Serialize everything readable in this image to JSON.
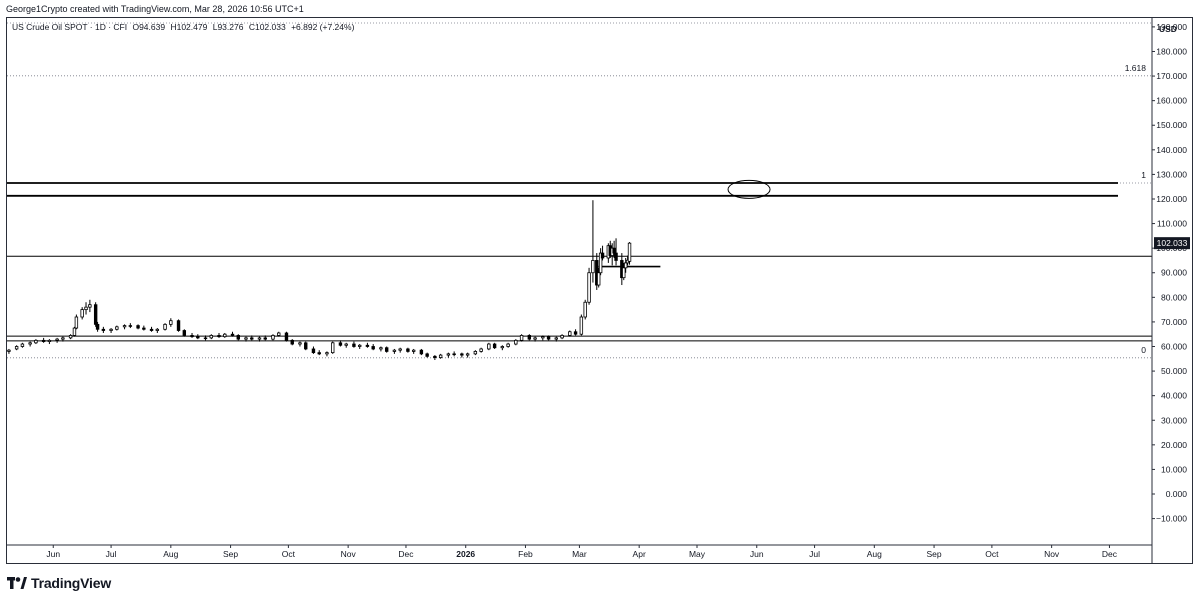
{
  "header": {
    "credit": "George1Crypto created with TradingView.com, Mar 28, 2026 10:56 UTC+1"
  },
  "legend": {
    "symbol": "US Crude Oil SPOT · 1D · CFI",
    "open": "O94.639",
    "high": "H102.479",
    "low": "L93.276",
    "close": "C102.033",
    "change": "+6.892 (+7.24%)"
  },
  "price_axis": {
    "unit": "USD",
    "current_price_label": "102.033"
  },
  "fib_labels": {
    "level_1618": "1.618",
    "level_1": "1",
    "level_0": "0"
  },
  "branding": {
    "logo_text": "TradingView"
  },
  "colors": {
    "line": "#000000",
    "current_price_bg": "#131722",
    "grid": "#e0e3eb"
  },
  "chart_data": {
    "type": "candlestick",
    "title": "US Crude Oil SPOT · 1D · CFI",
    "ylabel": "USD",
    "ylim": [
      -15,
      195
    ],
    "grid": false,
    "y_ticks": [
      190,
      180,
      170,
      160,
      150,
      140,
      130,
      120,
      110,
      100,
      90,
      80,
      70,
      60,
      50,
      40,
      30,
      20,
      10,
      0,
      -10
    ],
    "y_tick_labels": [
      "190.000",
      "180.000",
      "170.000",
      "160.000",
      "150.000",
      "140.000",
      "130.000",
      "120.000",
      "110.000",
      "100.000",
      "90.000",
      "80.000",
      "70.000",
      "60.000",
      "50.000",
      "40.000",
      "30.000",
      "20.000",
      "10.000",
      "0.000",
      "−10.000"
    ],
    "x_tick_labels": [
      "Jun",
      "Jul",
      "Aug",
      "Sep",
      "Oct",
      "Nov",
      "Dec",
      "2026",
      "Feb",
      "Mar",
      "Apr",
      "May",
      "Jun",
      "Jul",
      "Aug",
      "Sep",
      "Oct",
      "Nov",
      "Dec"
    ],
    "x_tick_dates": [
      "2025-06-01",
      "2025-07-01",
      "2025-08-01",
      "2025-09-01",
      "2025-10-01",
      "2025-11-01",
      "2025-12-01",
      "2026-01-01",
      "2026-02-01",
      "2026-03-01",
      "2026-04-01",
      "2026-05-01",
      "2026-06-01",
      "2026-07-01",
      "2026-08-01",
      "2026-09-01",
      "2026-10-01",
      "2026-11-01",
      "2026-12-01"
    ],
    "x_range": [
      "2025-05-08",
      "2026-12-21"
    ],
    "current_price": 102.033,
    "series": [
      {
        "points": [
          [
            "2025-05-09",
            58,
            59,
            57,
            58.5
          ],
          [
            "2025-05-13",
            59,
            60.5,
            58.5,
            60
          ],
          [
            "2025-05-16",
            60,
            61.5,
            59.5,
            61
          ],
          [
            "2025-05-20",
            61,
            62,
            60,
            61.5
          ],
          [
            "2025-05-23",
            61.5,
            63,
            61,
            62.5
          ],
          [
            "2025-05-27",
            62.5,
            63.5,
            61.5,
            62
          ],
          [
            "2025-05-30",
            62,
            63,
            61,
            62.5
          ],
          [
            "2025-06-03",
            62.5,
            63.5,
            61.5,
            63
          ],
          [
            "2025-06-06",
            63,
            64,
            62,
            63.5
          ],
          [
            "2025-06-10",
            63.5,
            65,
            63,
            64.5
          ],
          [
            "2025-06-12",
            64.5,
            68,
            64,
            67.5
          ],
          [
            "2025-06-13",
            67.5,
            73,
            67,
            72
          ],
          [
            "2025-06-16",
            72,
            76,
            71,
            75
          ],
          [
            "2025-06-18",
            75,
            78,
            73,
            76
          ],
          [
            "2025-06-20",
            76,
            79,
            74,
            77
          ],
          [
            "2025-06-23",
            77,
            78,
            68,
            69
          ],
          [
            "2025-06-24",
            69,
            70,
            66,
            67
          ],
          [
            "2025-06-27",
            67,
            68,
            65.5,
            66.5
          ],
          [
            "2025-07-01",
            66.5,
            67.5,
            65.5,
            67
          ],
          [
            "2025-07-04",
            67,
            68.5,
            66.5,
            68
          ],
          [
            "2025-07-08",
            68,
            69,
            67,
            68.5
          ],
          [
            "2025-07-11",
            68.5,
            69.5,
            67.5,
            68.5
          ],
          [
            "2025-07-15",
            68.5,
            69,
            67,
            67.5
          ],
          [
            "2025-07-18",
            67.5,
            68.5,
            66.5,
            67
          ],
          [
            "2025-07-22",
            67,
            68,
            66,
            66.5
          ],
          [
            "2025-07-25",
            66.5,
            67.5,
            65.5,
            67
          ],
          [
            "2025-07-29",
            67,
            69.5,
            66.5,
            69
          ],
          [
            "2025-08-01",
            69,
            71.5,
            68,
            70.5
          ],
          [
            "2025-08-05",
            70.5,
            71,
            66,
            66.5
          ],
          [
            "2025-08-08",
            66.5,
            67,
            64,
            64.5
          ],
          [
            "2025-08-12",
            64.5,
            65.5,
            63.5,
            64
          ],
          [
            "2025-08-15",
            64,
            65,
            63,
            63.5
          ],
          [
            "2025-08-19",
            63.5,
            64.5,
            62.5,
            63.5
          ],
          [
            "2025-08-22",
            63.5,
            65,
            63,
            64.5
          ],
          [
            "2025-08-26",
            64.5,
            65.5,
            63.5,
            64
          ],
          [
            "2025-08-29",
            64,
            65.5,
            63.5,
            65
          ],
          [
            "2025-09-02",
            65,
            66,
            64,
            64.5
          ],
          [
            "2025-09-05",
            64.5,
            65,
            62.5,
            63
          ],
          [
            "2025-09-09",
            63,
            64,
            62,
            63.5
          ],
          [
            "2025-09-12",
            63.5,
            64.5,
            62.5,
            63
          ],
          [
            "2025-09-16",
            63,
            64,
            62,
            63.5
          ],
          [
            "2025-09-19",
            63.5,
            64.5,
            62.5,
            63
          ],
          [
            "2025-09-23",
            63,
            65,
            62.5,
            64.5
          ],
          [
            "2025-09-26",
            64.5,
            66,
            64,
            65.5
          ],
          [
            "2025-09-30",
            65.5,
            66,
            62,
            62.5
          ],
          [
            "2025-10-03",
            62.5,
            63,
            60.5,
            61
          ],
          [
            "2025-10-07",
            61,
            62,
            60,
            61.5
          ],
          [
            "2025-10-10",
            61.5,
            62,
            58.5,
            59
          ],
          [
            "2025-10-14",
            59,
            60,
            57,
            57.5
          ],
          [
            "2025-10-17",
            57.5,
            58.5,
            56.5,
            57
          ],
          [
            "2025-10-21",
            57,
            58,
            56,
            57.5
          ],
          [
            "2025-10-24",
            57.5,
            62,
            57,
            61.5
          ],
          [
            "2025-10-28",
            61.5,
            62.5,
            60,
            60.5
          ],
          [
            "2025-10-31",
            60.5,
            61.5,
            59.5,
            61
          ],
          [
            "2025-11-04",
            61,
            62,
            59.5,
            60
          ],
          [
            "2025-11-07",
            60,
            61,
            59,
            60.5
          ],
          [
            "2025-11-11",
            60.5,
            61.5,
            59.5,
            60
          ],
          [
            "2025-11-14",
            60,
            61,
            58.5,
            59
          ],
          [
            "2025-11-18",
            59,
            60,
            58,
            59.5
          ],
          [
            "2025-11-21",
            59.5,
            60,
            57.5,
            58
          ],
          [
            "2025-11-25",
            58,
            59,
            57,
            58.5
          ],
          [
            "2025-11-28",
            58.5,
            59.5,
            57.5,
            59
          ],
          [
            "2025-12-02",
            59,
            59.5,
            57.5,
            58
          ],
          [
            "2025-12-05",
            58,
            59,
            57,
            58.5
          ],
          [
            "2025-12-09",
            58.5,
            59,
            56.5,
            57
          ],
          [
            "2025-12-12",
            57,
            57.5,
            55.5,
            56
          ],
          [
            "2025-12-16",
            56,
            56.5,
            54.5,
            55.5
          ],
          [
            "2025-12-19",
            55.5,
            57,
            55,
            56.5
          ],
          [
            "2025-12-23",
            56.5,
            57.5,
            55.5,
            57
          ],
          [
            "2025-12-26",
            57,
            58,
            56,
            57
          ],
          [
            "2025-12-30",
            57,
            57.5,
            55.5,
            56.5
          ],
          [
            "2026-01-02",
            56.5,
            57.5,
            55.5,
            57
          ],
          [
            "2026-01-06",
            57,
            58.5,
            56.5,
            58
          ],
          [
            "2026-01-09",
            58,
            59.5,
            57.5,
            59
          ],
          [
            "2026-01-13",
            59,
            61.5,
            58.5,
            61
          ],
          [
            "2026-01-16",
            61,
            61.5,
            59,
            59.5
          ],
          [
            "2026-01-20",
            59.5,
            60.5,
            58.5,
            60
          ],
          [
            "2026-01-23",
            60,
            61.5,
            59.5,
            61
          ],
          [
            "2026-01-27",
            61,
            63,
            60.5,
            62.5
          ],
          [
            "2026-01-30",
            62.5,
            65,
            62,
            64.5
          ],
          [
            "2026-02-03",
            64.5,
            65,
            62.5,
            63
          ],
          [
            "2026-02-06",
            63,
            64,
            62,
            63.5
          ],
          [
            "2026-02-10",
            63.5,
            64.5,
            62.5,
            64
          ],
          [
            "2026-02-13",
            64,
            64.5,
            62.5,
            63
          ],
          [
            "2026-02-17",
            63,
            64,
            62,
            63.5
          ],
          [
            "2026-02-20",
            63.5,
            65,
            63,
            64.5
          ],
          [
            "2026-02-24",
            64.5,
            66.5,
            64,
            66
          ],
          [
            "2026-02-27",
            66,
            67,
            64.5,
            65
          ],
          [
            "2026-03-02",
            65,
            73,
            64.5,
            72
          ],
          [
            "2026-03-04",
            72,
            79,
            71,
            78
          ],
          [
            "2026-03-06",
            78,
            92,
            77,
            90
          ],
          [
            "2026-03-08",
            90,
            119.5,
            86,
            95
          ],
          [
            "2026-03-10",
            95,
            98,
            83,
            85
          ],
          [
            "2026-03-11",
            85,
            92,
            84,
            90
          ],
          [
            "2026-03-12",
            90,
            100,
            89,
            98
          ],
          [
            "2026-03-13",
            98,
            101,
            95,
            96
          ],
          [
            "2026-03-16",
            96,
            102,
            94,
            101
          ],
          [
            "2026-03-17",
            101,
            103,
            96,
            97
          ],
          [
            "2026-03-18",
            97,
            102,
            93,
            100
          ],
          [
            "2026-03-19",
            100,
            103,
            96,
            98
          ],
          [
            "2026-03-20",
            98,
            104,
            93,
            95
          ],
          [
            "2026-03-23",
            95,
            98,
            85,
            88
          ],
          [
            "2026-03-24",
            88,
            94,
            87,
            92
          ],
          [
            "2026-03-25",
            92,
            96,
            90,
            94
          ],
          [
            "2026-03-26",
            94,
            97,
            93,
            95.1
          ],
          [
            "2026-03-27",
            94.639,
            102.479,
            93.276,
            102.033
          ]
        ]
      }
    ],
    "horizontal_levels": [
      {
        "price": 126.5,
        "label": "1"
      },
      {
        "price": 121.3
      },
      {
        "price": 96.7
      },
      {
        "price": 92.5
      },
      {
        "price": 64.2
      },
      {
        "price": 62.3
      }
    ],
    "fib_dotted_levels": [
      {
        "price": 170.1,
        "label": "1.618"
      },
      {
        "price": 126.5,
        "label": "1"
      },
      {
        "price": 55.4,
        "label": "0"
      }
    ],
    "annotation_ellipse": {
      "date": "2026-05-28",
      "price": 123.9
    }
  }
}
